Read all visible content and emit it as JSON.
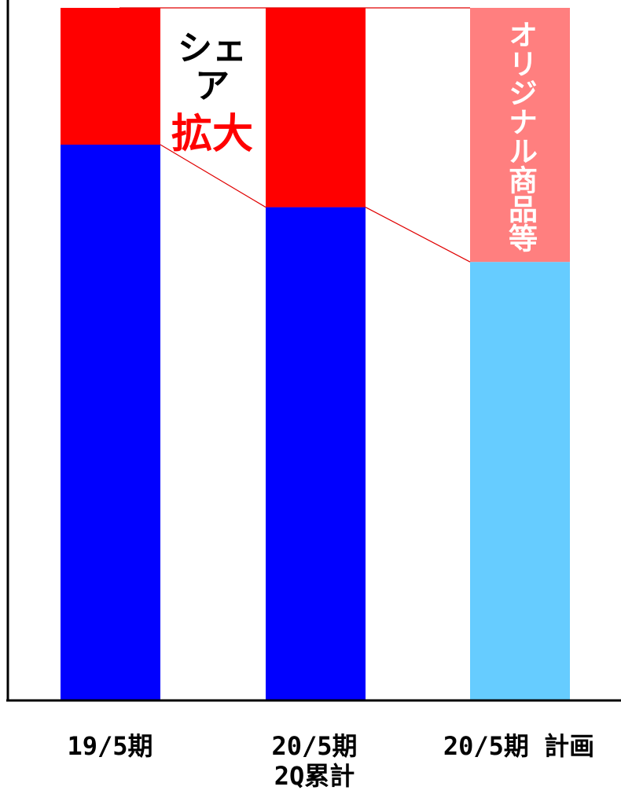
{
  "chart_data": {
    "type": "bar",
    "stacked": true,
    "categories": [
      "19/5期",
      "20/5期\n2Q累計",
      "20/5期 計画"
    ],
    "series": [
      {
        "values": [
          71,
          63,
          56
        ]
      },
      {
        "values": [
          17.5,
          25.5,
          32.5
        ]
      }
    ],
    "segment_colors": {
      "bottom": [
        "#0000ff",
        "#0000ff",
        "#66ccff"
      ],
      "top": [
        "#ff0000",
        "#ff0000",
        "#ff7f7f"
      ]
    },
    "connector_color": "#e00000",
    "axis_color": "#000000",
    "ylim": [
      0,
      88.5
    ],
    "grid": false,
    "legend": "none",
    "annotations": {
      "share_line1": "シェア",
      "share_line2": "拡大",
      "share_line2_color": "#ff0000",
      "original_goods": "オリジナル商品等"
    },
    "xtick_labels": {
      "c0": "19/5期",
      "c1_line1": "20/5期",
      "c1_line2": "2Q累計",
      "c2": "20/5期 計画"
    }
  }
}
